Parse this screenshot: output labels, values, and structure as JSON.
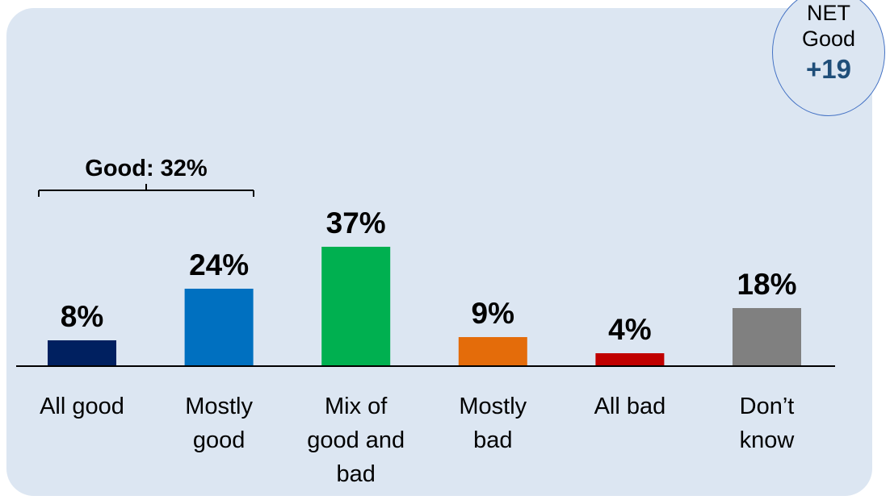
{
  "net_badge": {
    "line1": "NET",
    "line2": "Good",
    "value": "+19"
  },
  "bracket_label": "Good: 32%",
  "chart_data": {
    "type": "bar",
    "categories": [
      "All good",
      "Mostly good",
      "Mix of good and bad",
      "Mostly bad",
      "All bad",
      "Don’t know"
    ],
    "category_lines": [
      [
        "All good"
      ],
      [
        "Mostly",
        "good"
      ],
      [
        "Mix of",
        "good and",
        "bad"
      ],
      [
        "Mostly",
        "bad"
      ],
      [
        "All bad"
      ],
      [
        "Don’t",
        "know"
      ]
    ],
    "values": [
      8,
      24,
      37,
      9,
      4,
      18
    ],
    "data_labels": [
      "8%",
      "24%",
      "37%",
      "9%",
      "4%",
      "18%"
    ],
    "colors": [
      "#002060",
      "#0070c0",
      "#00b050",
      "#e46c0a",
      "#c00000",
      "#808080"
    ],
    "ylim": [
      0,
      37
    ],
    "grid": false
  }
}
